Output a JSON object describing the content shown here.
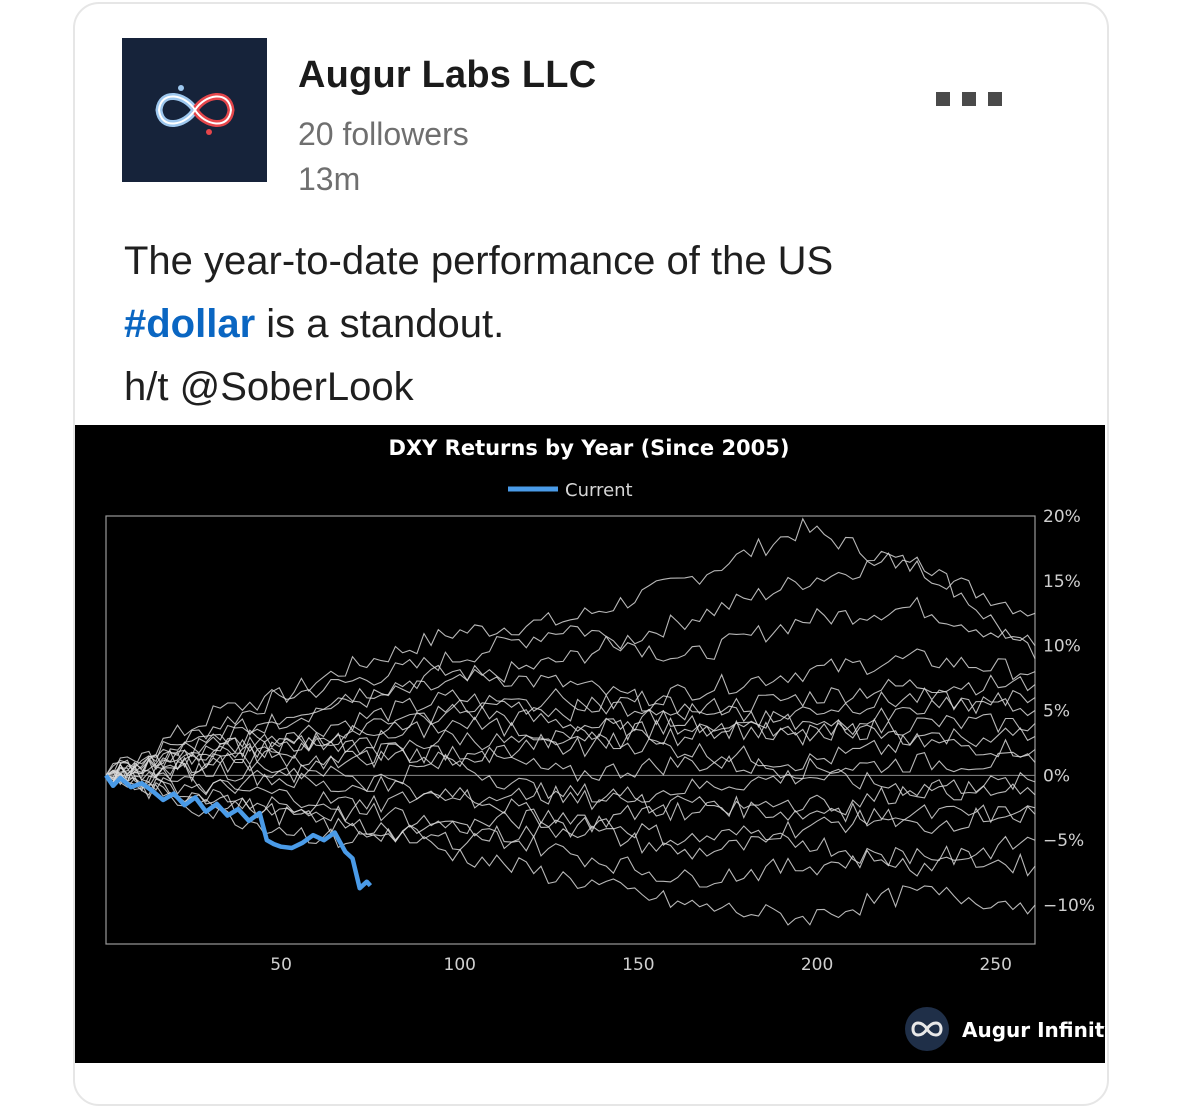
{
  "post": {
    "company": "Augur Labs LLC",
    "followers": "20 followers",
    "time": "13m",
    "text_line1": "The year-to-date performance of the US",
    "hashtag": "#dollar",
    "text_line2_rest": " is a standout.",
    "text_line3": "h/t @SoberLook",
    "menu_icon": "more-horizontal-icon"
  },
  "colors": {
    "hashtag": "#0a66c2",
    "current_series": "#4a9be8",
    "history_series": "#d8d8d8",
    "chart_background": "#000000",
    "logo_background": "#16233a"
  },
  "chart_data": {
    "type": "line",
    "title": "DXY Returns by Year (Since 2005)",
    "legend": [
      "Current"
    ],
    "legend_position": "top-center",
    "xlim": [
      1,
      261
    ],
    "ylim": [
      -13,
      20
    ],
    "x_ticks": [
      50,
      100,
      150,
      200,
      250
    ],
    "x_tick_labels": [
      "50",
      "100",
      "150",
      "200",
      "250"
    ],
    "y_ticks": [
      20,
      15,
      10,
      5,
      0,
      -5,
      -10
    ],
    "y_tick_labels": [
      "20%",
      "15%",
      "10%",
      "5%",
      "0%",
      "−5%",
      "−10%"
    ],
    "y_axis_side": "right",
    "series": [
      {
        "name": "Current",
        "highlight": true,
        "x": [
          1,
          3,
          5,
          8,
          11,
          14,
          17,
          20,
          23,
          26,
          29,
          32,
          35,
          38,
          41,
          44,
          46,
          48,
          50,
          53,
          56,
          59,
          62,
          65,
          68,
          70,
          72,
          74,
          75
        ],
        "y": [
          0,
          -0.8,
          -0.2,
          -0.9,
          -0.6,
          -1.2,
          -1.9,
          -1.4,
          -2.3,
          -1.7,
          -2.8,
          -2.2,
          -3.1,
          -2.6,
          -3.5,
          -2.9,
          -5.0,
          -5.3,
          -5.5,
          -5.6,
          -5.2,
          -4.6,
          -5.0,
          -4.4,
          -5.9,
          -6.4,
          -8.7,
          -8.2,
          -8.5
        ]
      },
      {
        "x": [
          1,
          33,
          66,
          98,
          131,
          163,
          196,
          228,
          261
        ],
        "y": [
          0,
          4,
          8,
          11,
          12,
          15,
          19,
          16,
          12.5
        ]
      },
      {
        "x": [
          1,
          33,
          66,
          98,
          131,
          163,
          196,
          228,
          261
        ],
        "y": [
          0,
          3,
          5.5,
          7,
          9,
          12,
          15,
          17,
          9
        ]
      },
      {
        "x": [
          1,
          33,
          66,
          98,
          131,
          163,
          196,
          228,
          261
        ],
        "y": [
          0,
          5,
          7,
          9,
          11.5,
          9,
          12,
          13,
          10
        ]
      },
      {
        "x": [
          1,
          33,
          66,
          98,
          131,
          163,
          196,
          228,
          261
        ],
        "y": [
          0,
          2,
          4,
          6,
          5,
          6.5,
          8,
          9,
          8
        ]
      },
      {
        "x": [
          1,
          33,
          66,
          98,
          131,
          163,
          196,
          228,
          261
        ],
        "y": [
          0,
          3,
          6,
          8,
          7,
          5,
          6,
          7,
          7
        ]
      },
      {
        "x": [
          1,
          33,
          66,
          98,
          131,
          163,
          196,
          228,
          261
        ],
        "y": [
          0,
          1,
          3,
          5,
          4,
          3,
          5,
          6,
          5
        ]
      },
      {
        "x": [
          1,
          33,
          66,
          98,
          131,
          163,
          196,
          228,
          261
        ],
        "y": [
          0,
          2,
          1,
          3,
          2,
          4,
          3,
          4,
          4
        ]
      },
      {
        "x": [
          1,
          33,
          66,
          98,
          131,
          163,
          196,
          228,
          261
        ],
        "y": [
          0,
          1.5,
          2.5,
          1,
          3,
          2,
          1,
          2.5,
          2
        ]
      },
      {
        "x": [
          1,
          33,
          66,
          98,
          131,
          163,
          196,
          228,
          261
        ],
        "y": [
          0,
          -1,
          1,
          2,
          0,
          1,
          0.5,
          1,
          1
        ]
      },
      {
        "x": [
          1,
          33,
          66,
          98,
          131,
          163,
          196,
          228,
          261
        ],
        "y": [
          0,
          0.5,
          -1,
          1,
          -2,
          -1,
          0,
          -1,
          -0.5
        ]
      },
      {
        "x": [
          1,
          33,
          66,
          98,
          131,
          163,
          196,
          228,
          261
        ],
        "y": [
          0,
          -2,
          -3,
          -1,
          -4,
          -2,
          -3,
          -1,
          -1.5
        ]
      },
      {
        "x": [
          1,
          33,
          66,
          98,
          131,
          163,
          196,
          228,
          261
        ],
        "y": [
          0,
          -1,
          -2,
          -4,
          -3,
          -5,
          -4,
          -3,
          -3
        ]
      },
      {
        "x": [
          1,
          33,
          66,
          98,
          131,
          163,
          196,
          228,
          261
        ],
        "y": [
          0,
          -2,
          -4,
          -5,
          -4,
          -6,
          -5,
          -7,
          -5
        ]
      },
      {
        "x": [
          1,
          33,
          66,
          98,
          131,
          163,
          196,
          228,
          261
        ],
        "y": [
          0,
          -3,
          -5,
          -4,
          -6,
          -8,
          -7,
          -6,
          -7
        ]
      },
      {
        "x": [
          1,
          33,
          66,
          98,
          131,
          163,
          196,
          228,
          261
        ],
        "y": [
          0,
          -2,
          -3,
          -6,
          -8,
          -10,
          -11,
          -9,
          -10
        ]
      },
      {
        "x": [
          1,
          33,
          66,
          98,
          131,
          163,
          196,
          228,
          261
        ],
        "y": [
          0,
          2,
          3,
          5,
          6,
          4,
          3,
          5,
          6
        ]
      },
      {
        "x": [
          1,
          33,
          66,
          98,
          131,
          163,
          196,
          228,
          261
        ],
        "y": [
          0,
          1,
          0,
          -2,
          -1,
          -3,
          -2,
          -4,
          -2.5
        ]
      },
      {
        "x": [
          1,
          33,
          66,
          98,
          131,
          163,
          196,
          228,
          261
        ],
        "y": [
          0,
          3,
          2,
          4,
          3,
          5,
          4,
          3,
          3
        ]
      }
    ]
  },
  "watermark": {
    "text": "Augur Infinity",
    "icon": "infinity-logo-icon"
  }
}
